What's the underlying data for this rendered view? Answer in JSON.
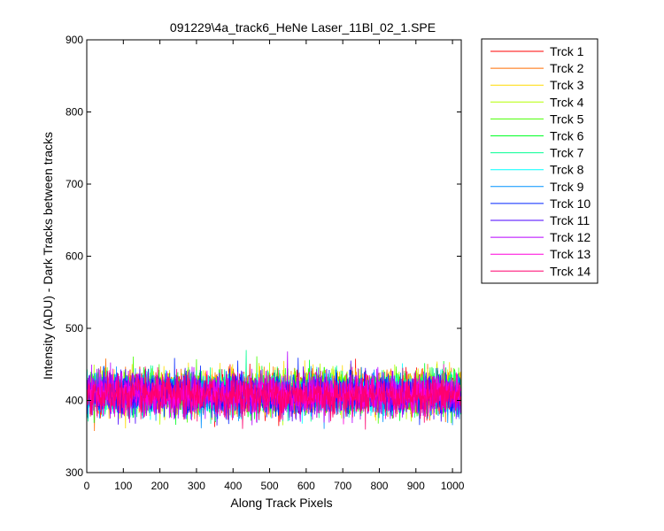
{
  "chart_data": {
    "type": "line",
    "title": "091229\\4a_track6_HeNe Laser_11Bl_02_1.SPE",
    "xlabel": "Along Track Pixels",
    "ylabel": "Intensity (ADU) - Dark Tracks between tracks",
    "xlim": [
      0,
      1024
    ],
    "ylim": [
      300,
      900
    ],
    "xticks": [
      0,
      100,
      200,
      300,
      400,
      500,
      600,
      700,
      800,
      900,
      1000
    ],
    "yticks": [
      300,
      400,
      500,
      600,
      700,
      800,
      900
    ],
    "grid": false,
    "legend_position": "outside-right",
    "series_points": 1024,
    "series": [
      {
        "name": "Trck 1",
        "color": "#ff0000",
        "mean": 412,
        "noise_sd": 14
      },
      {
        "name": "Trck 2",
        "color": "#ff6e00",
        "mean": 414,
        "noise_sd": 14
      },
      {
        "name": "Trck 3",
        "color": "#ffdb00",
        "mean": 414,
        "noise_sd": 14
      },
      {
        "name": "Trck 4",
        "color": "#b6ff00",
        "mean": 413,
        "noise_sd": 14
      },
      {
        "name": "Trck 5",
        "color": "#49ff00",
        "mean": 411,
        "noise_sd": 14
      },
      {
        "name": "Trck 6",
        "color": "#00ff25",
        "mean": 410,
        "noise_sd": 14
      },
      {
        "name": "Trck 7",
        "color": "#00ff92",
        "mean": 410,
        "noise_sd": 14
      },
      {
        "name": "Trck 8",
        "color": "#00ffff",
        "mean": 409,
        "noise_sd": 14
      },
      {
        "name": "Trck 9",
        "color": "#0092ff",
        "mean": 408,
        "noise_sd": 14
      },
      {
        "name": "Trck 10",
        "color": "#0025ff",
        "mean": 409,
        "noise_sd": 14
      },
      {
        "name": "Trck 11",
        "color": "#4900ff",
        "mean": 409,
        "noise_sd": 14
      },
      {
        "name": "Trck 12",
        "color": "#b600ff",
        "mean": 408,
        "noise_sd": 14
      },
      {
        "name": "Trck 13",
        "color": "#ff00db",
        "mean": 408,
        "noise_sd": 14
      },
      {
        "name": "Trck 14",
        "color": "#ff006e",
        "mean": 407,
        "noise_sd": 14
      }
    ]
  }
}
